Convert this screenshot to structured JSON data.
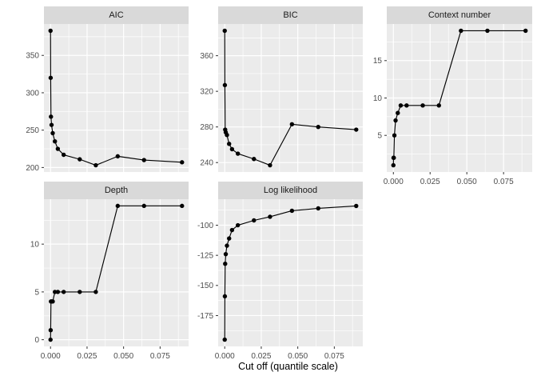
{
  "chart_data": {
    "type": "line",
    "faceted": true,
    "facet_layout": "wrap-3-columns",
    "x_label": "Cut off (quantile scale)",
    "x": [
      0,
      0.0001,
      0.0003,
      0.0007,
      0.0015,
      0.003,
      0.005,
      0.009,
      0.02,
      0.031,
      0.046,
      0.064,
      0.09
    ],
    "x_range": [
      -0.0045,
      0.0945
    ],
    "x_ticks": [
      0,
      0.025,
      0.05,
      0.075
    ],
    "x_tick_labels": [
      "0.000",
      "0.025",
      "0.050",
      "0.075"
    ],
    "grid": true,
    "legend": false,
    "marker": "filled-circle",
    "panels": [
      {
        "title": "AIC",
        "values": [
          383,
          320,
          268,
          257,
          246,
          235,
          225,
          217,
          211,
          203,
          215,
          210,
          207
        ],
        "y_ticks": [
          200,
          250,
          300,
          350
        ],
        "y_tick_labels": [
          "200",
          "250",
          "300",
          "350"
        ],
        "y_range": [
          194,
          392
        ]
      },
      {
        "title": "BIC",
        "values": [
          388,
          327,
          277,
          274,
          271,
          261,
          255,
          250,
          244,
          237,
          283,
          280,
          277
        ],
        "y_ticks": [
          240,
          280,
          320,
          360
        ],
        "y_tick_labels": [
          "240",
          "280",
          "320",
          "360"
        ],
        "y_range": [
          229.4,
          395.6
        ]
      },
      {
        "title": "Context number",
        "values": [
          1,
          2,
          2,
          5,
          7,
          8,
          9,
          9,
          9,
          9,
          19,
          19,
          19
        ],
        "y_ticks": [
          5,
          10,
          15
        ],
        "y_tick_labels": [
          "5",
          "10",
          "15"
        ],
        "y_range": [
          0.1,
          19.9
        ]
      },
      {
        "title": "Depth",
        "values": [
          0,
          1,
          4,
          4,
          4,
          5,
          5,
          5,
          5,
          5,
          14,
          14,
          14
        ],
        "y_ticks": [
          0,
          5,
          10
        ],
        "y_tick_labels": [
          "0",
          "5",
          "10"
        ],
        "y_range": [
          -0.7,
          14.7
        ]
      },
      {
        "title": "Log likelihood",
        "values": [
          -195,
          -159,
          -132,
          -124,
          -117,
          -111,
          -104,
          -100,
          -96,
          -93,
          -88,
          -86,
          -84
        ],
        "y_ticks": [
          -175,
          -150,
          -125,
          -100
        ],
        "y_tick_labels": [
          "-175",
          "-150",
          "-125",
          "-100"
        ],
        "y_range": [
          -200.6,
          -78.4
        ]
      }
    ]
  },
  "colors": {
    "page_bg": "#FFFFFF",
    "panel_bg": "#EBEBEB",
    "strip_bg": "#D9D9D9",
    "gridline": "#FFFFFF",
    "series_line": "#000000",
    "point": "#000000",
    "axis_text": "#4D4D4D",
    "tick_mark": "#333333",
    "strip_text": "#1A1A1A",
    "axis_title_text": "#000000"
  }
}
